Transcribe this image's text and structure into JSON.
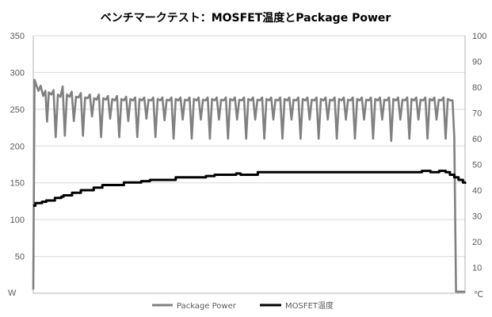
{
  "chart_data": {
    "type": "line",
    "title": "ベンチマークテスト：MOSFET温度とPackage Power",
    "y_left": {
      "unit": "W",
      "min": 0,
      "max": 350,
      "ticks": [
        350,
        300,
        250,
        200,
        150,
        100,
        50
      ]
    },
    "y_right": {
      "unit": "℃",
      "min": 0,
      "max": 100,
      "ticks": [
        100,
        90,
        80,
        70,
        60,
        50,
        40,
        30,
        20,
        10
      ]
    },
    "x": {
      "min": 0,
      "max": 100
    },
    "grid": true,
    "legend_position": "bottom",
    "series": [
      {
        "name": "Package Power",
        "axis": "left",
        "color": "#808080",
        "points": [
          [
            0,
            5
          ],
          [
            0.3,
            290
          ],
          [
            0.7,
            283
          ],
          [
            1.2,
            275
          ],
          [
            1.7,
            282
          ],
          [
            2.3,
            268
          ],
          [
            2.8,
            275
          ],
          [
            3.2,
            233
          ],
          [
            3.6,
            273
          ],
          [
            4.2,
            270
          ],
          [
            4.7,
            276
          ],
          [
            5.2,
            212
          ],
          [
            5.7,
            270
          ],
          [
            6.3,
            267
          ],
          [
            6.8,
            281
          ],
          [
            7.3,
            214
          ],
          [
            7.8,
            270
          ],
          [
            8.4,
            267
          ],
          [
            8.9,
            274
          ],
          [
            9.4,
            234
          ],
          [
            9.9,
            267
          ],
          [
            10.5,
            266
          ],
          [
            11.0,
            272
          ],
          [
            11.5,
            214
          ],
          [
            12.0,
            266
          ],
          [
            12.6,
            265
          ],
          [
            13.1,
            270
          ],
          [
            13.6,
            240
          ],
          [
            14.1,
            265
          ],
          [
            14.7,
            263
          ],
          [
            15.2,
            270
          ],
          [
            15.7,
            212
          ],
          [
            16.2,
            265
          ],
          [
            16.8,
            263
          ],
          [
            17.3,
            268
          ],
          [
            17.8,
            237
          ],
          [
            18.3,
            264
          ],
          [
            18.9,
            262
          ],
          [
            19.4,
            268
          ],
          [
            19.9,
            212
          ],
          [
            20.4,
            264
          ],
          [
            21.0,
            262
          ],
          [
            21.5,
            267
          ],
          [
            22.0,
            234
          ],
          [
            22.5,
            264
          ],
          [
            23.1,
            262
          ],
          [
            23.6,
            266
          ],
          [
            24.1,
            212
          ],
          [
            24.6,
            264
          ],
          [
            25.2,
            262
          ],
          [
            25.7,
            266
          ],
          [
            26.2,
            237
          ],
          [
            26.7,
            263
          ],
          [
            27.3,
            262
          ],
          [
            27.8,
            266
          ],
          [
            28.3,
            212
          ],
          [
            28.8,
            264
          ],
          [
            29.4,
            262
          ],
          [
            29.9,
            266
          ],
          [
            30.4,
            235
          ],
          [
            30.9,
            263
          ],
          [
            31.5,
            262
          ],
          [
            32.0,
            266
          ],
          [
            32.5,
            210
          ],
          [
            33.0,
            264
          ],
          [
            33.6,
            262
          ],
          [
            34.1,
            266
          ],
          [
            34.6,
            236
          ],
          [
            35.1,
            263
          ],
          [
            35.7,
            262
          ],
          [
            36.2,
            266
          ],
          [
            36.7,
            210
          ],
          [
            37.2,
            264
          ],
          [
            37.8,
            262
          ],
          [
            38.3,
            266
          ],
          [
            38.8,
            236
          ],
          [
            39.3,
            263
          ],
          [
            39.9,
            262
          ],
          [
            40.4,
            266
          ],
          [
            40.9,
            210
          ],
          [
            41.4,
            264
          ],
          [
            42.0,
            262
          ],
          [
            42.5,
            266
          ],
          [
            43.0,
            236
          ],
          [
            43.5,
            263
          ],
          [
            44.1,
            262
          ],
          [
            44.6,
            266
          ],
          [
            45.1,
            210
          ],
          [
            45.6,
            264
          ],
          [
            46.2,
            262
          ],
          [
            46.7,
            266
          ],
          [
            47.2,
            236
          ],
          [
            47.7,
            263
          ],
          [
            48.3,
            262
          ],
          [
            48.8,
            266
          ],
          [
            49.3,
            210
          ],
          [
            49.8,
            264
          ],
          [
            50.4,
            262
          ],
          [
            50.9,
            266
          ],
          [
            51.4,
            236
          ],
          [
            51.9,
            263
          ],
          [
            52.5,
            262
          ],
          [
            53.0,
            266
          ],
          [
            53.5,
            210
          ],
          [
            54.0,
            264
          ],
          [
            54.6,
            262
          ],
          [
            55.1,
            266
          ],
          [
            55.6,
            236
          ],
          [
            56.1,
            263
          ],
          [
            56.7,
            262
          ],
          [
            57.2,
            266
          ],
          [
            57.7,
            210
          ],
          [
            58.2,
            264
          ],
          [
            58.8,
            262
          ],
          [
            59.3,
            266
          ],
          [
            59.8,
            236
          ],
          [
            60.3,
            263
          ],
          [
            60.9,
            262
          ],
          [
            61.4,
            266
          ],
          [
            61.9,
            210
          ],
          [
            62.4,
            264
          ],
          [
            63.0,
            262
          ],
          [
            63.5,
            266
          ],
          [
            64.0,
            236
          ],
          [
            64.5,
            263
          ],
          [
            65.1,
            262
          ],
          [
            65.6,
            266
          ],
          [
            66.1,
            210
          ],
          [
            66.6,
            264
          ],
          [
            67.2,
            262
          ],
          [
            67.7,
            266
          ],
          [
            68.2,
            236
          ],
          [
            68.7,
            263
          ],
          [
            69.3,
            262
          ],
          [
            69.8,
            266
          ],
          [
            70.3,
            210
          ],
          [
            70.8,
            264
          ],
          [
            71.4,
            262
          ],
          [
            71.9,
            266
          ],
          [
            72.4,
            236
          ],
          [
            72.9,
            263
          ],
          [
            73.5,
            262
          ],
          [
            74.0,
            266
          ],
          [
            74.5,
            210
          ],
          [
            75.0,
            264
          ],
          [
            75.6,
            262
          ],
          [
            76.1,
            266
          ],
          [
            76.6,
            236
          ],
          [
            77.1,
            263
          ],
          [
            77.7,
            262
          ],
          [
            78.2,
            266
          ],
          [
            78.7,
            210
          ],
          [
            79.2,
            264
          ],
          [
            79.8,
            262
          ],
          [
            80.3,
            266
          ],
          [
            80.8,
            236
          ],
          [
            81.3,
            263
          ],
          [
            81.9,
            262
          ],
          [
            82.4,
            266
          ],
          [
            82.9,
            207
          ],
          [
            83.4,
            264
          ],
          [
            84.0,
            262
          ],
          [
            84.5,
            266
          ],
          [
            85.0,
            236
          ],
          [
            85.5,
            263
          ],
          [
            86.1,
            262
          ],
          [
            86.6,
            266
          ],
          [
            87.1,
            210
          ],
          [
            87.6,
            264
          ],
          [
            88.2,
            262
          ],
          [
            88.7,
            266
          ],
          [
            89.2,
            236
          ],
          [
            89.7,
            263
          ],
          [
            90.3,
            262
          ],
          [
            90.8,
            266
          ],
          [
            91.3,
            210
          ],
          [
            91.8,
            264
          ],
          [
            92.4,
            262
          ],
          [
            92.9,
            266
          ],
          [
            93.4,
            236
          ],
          [
            93.9,
            263
          ],
          [
            94.5,
            262
          ],
          [
            95.0,
            266
          ],
          [
            95.5,
            210
          ],
          [
            96.0,
            264
          ],
          [
            96.6,
            262
          ],
          [
            97.1,
            262
          ],
          [
            97.5,
            212
          ],
          [
            97.9,
            2
          ],
          [
            99.0,
            2
          ],
          [
            100,
            2
          ]
        ]
      },
      {
        "name": "MOSFET温度",
        "axis": "right",
        "color": "#000000",
        "points": [
          [
            0,
            34
          ],
          [
            0.5,
            35
          ],
          [
            2,
            35.5
          ],
          [
            3,
            36
          ],
          [
            5,
            37
          ],
          [
            6.5,
            37.5
          ],
          [
            7,
            38
          ],
          [
            9,
            39
          ],
          [
            10,
            39
          ],
          [
            11,
            40
          ],
          [
            13,
            40
          ],
          [
            14,
            41
          ],
          [
            15.5,
            41
          ],
          [
            16,
            42
          ],
          [
            18,
            42
          ],
          [
            20,
            42
          ],
          [
            20.5,
            42
          ],
          [
            21,
            43
          ],
          [
            23,
            43
          ],
          [
            24,
            43
          ],
          [
            25,
            43.5
          ],
          [
            27,
            44
          ],
          [
            29,
            44
          ],
          [
            32,
            44
          ],
          [
            33,
            45
          ],
          [
            35,
            45
          ],
          [
            38,
            45
          ],
          [
            40,
            45.5
          ],
          [
            42,
            46
          ],
          [
            44,
            46
          ],
          [
            46,
            46
          ],
          [
            47,
            46.5
          ],
          [
            48,
            46
          ],
          [
            52,
            47
          ],
          [
            56,
            47
          ],
          [
            60,
            47
          ],
          [
            64,
            47
          ],
          [
            68,
            47
          ],
          [
            72,
            47
          ],
          [
            76,
            47
          ],
          [
            80,
            47
          ],
          [
            84,
            47
          ],
          [
            88,
            47
          ],
          [
            90,
            47.5
          ],
          [
            92,
            47
          ],
          [
            94,
            47.5
          ],
          [
            95.5,
            47
          ],
          [
            96.5,
            46
          ],
          [
            97.5,
            45
          ],
          [
            98.5,
            44
          ],
          [
            99.5,
            43
          ],
          [
            100,
            42.5
          ]
        ]
      }
    ]
  }
}
